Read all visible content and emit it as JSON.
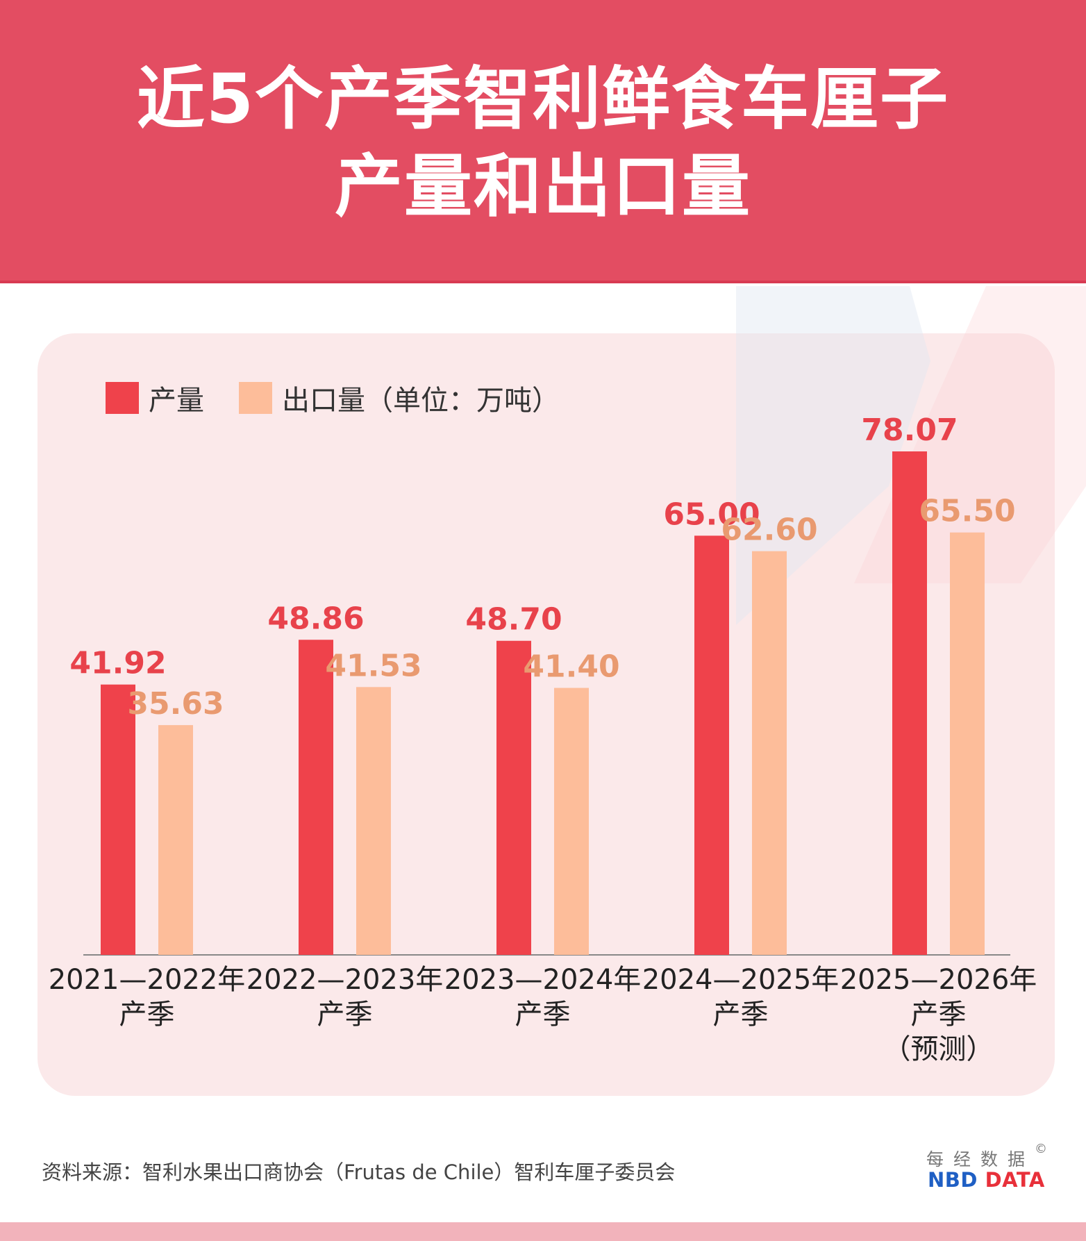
{
  "header": {
    "title_line1": "近5个产季智利鲜食车厘子",
    "title_line2": "产量和出口量"
  },
  "legend": {
    "series1": "产量",
    "series2": "出口量（单位：万吨）"
  },
  "colors": {
    "header_bg": "#e34d62",
    "production": "#ef424b",
    "export": "#fdbd9a",
    "production_label": "#e8424b",
    "export_label": "#e99a70",
    "panel_bg": "#fbe9ea",
    "brand_blue": "#1f5fc4",
    "brand_red": "#e8303a"
  },
  "chart_data": {
    "type": "bar",
    "categories": [
      [
        "2021—2022年",
        "产季"
      ],
      [
        "2022—2023年",
        "产季"
      ],
      [
        "2023—2024年",
        "产季"
      ],
      [
        "2024—2025年",
        "产季"
      ],
      [
        "2025—2026年",
        "产季",
        "（预测）"
      ]
    ],
    "series": [
      {
        "name": "产量",
        "values": [
          41.92,
          48.86,
          48.7,
          65.0,
          78.07
        ],
        "labels": [
          "41.92",
          "48.86",
          "48.70",
          "65.00",
          "78.07"
        ]
      },
      {
        "name": "出口量",
        "values": [
          35.63,
          41.53,
          41.4,
          62.6,
          65.5
        ],
        "labels": [
          "35.63",
          "41.53",
          "41.40",
          "62.60",
          "65.50"
        ]
      }
    ],
    "unit": "万吨",
    "ylim": [
      0,
      78.07
    ]
  },
  "footer": {
    "source": "资料来源：智利水果出口商协会（Frutas de Chile）智利车厘子委员会",
    "brand_cn": "每经数据",
    "brand_copyright": "©",
    "brand_en_part1": "NBD",
    "brand_en_part2": "DATA"
  }
}
